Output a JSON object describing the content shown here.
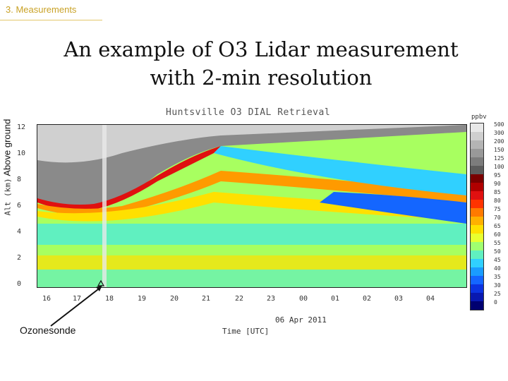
{
  "section_label": "3. Measurements",
  "title_line1": "An example of O3 Lidar measurement",
  "title_line2": "with 2-min resolution",
  "plot_title": "Huntsville O3 DIAL Retrieval",
  "y_label_alt": "Alt (km)",
  "y_label_text": "Above ground",
  "y_ticks": [
    "12",
    "10",
    "8",
    "6",
    "4",
    "2",
    "0"
  ],
  "x_ticks": [
    "16",
    "17",
    "18",
    "19",
    "20",
    "21",
    "22",
    "23",
    "00",
    "01",
    "02",
    "03",
    "04"
  ],
  "date_label": "06 Apr 2011",
  "time_label": "Time [UTC]",
  "ozonesonde_label": "Ozonesonde",
  "colorbar_unit": "ppbv",
  "colorbar_labels": [
    "500",
    "300",
    "200",
    "150",
    "125",
    "100",
    "95",
    "90",
    "85",
    "80",
    "75",
    "70",
    "65",
    "60",
    "55",
    "50",
    "45",
    "40",
    "35",
    "30",
    "25",
    "0"
  ],
  "colorbar_colors": [
    "#e8e8e8",
    "#cfcfcf",
    "#b4b4b4",
    "#999999",
    "#7c7c7c",
    "#5c5c5c",
    "#7a0000",
    "#b00000",
    "#e01010",
    "#ff3300",
    "#ff7a00",
    "#ffb000",
    "#ffe000",
    "#e8ff30",
    "#a0ff70",
    "#60f0c0",
    "#30d0ff",
    "#1a9cff",
    "#1466ff",
    "#0b33e0",
    "#0818b0",
    "#000070"
  ]
}
